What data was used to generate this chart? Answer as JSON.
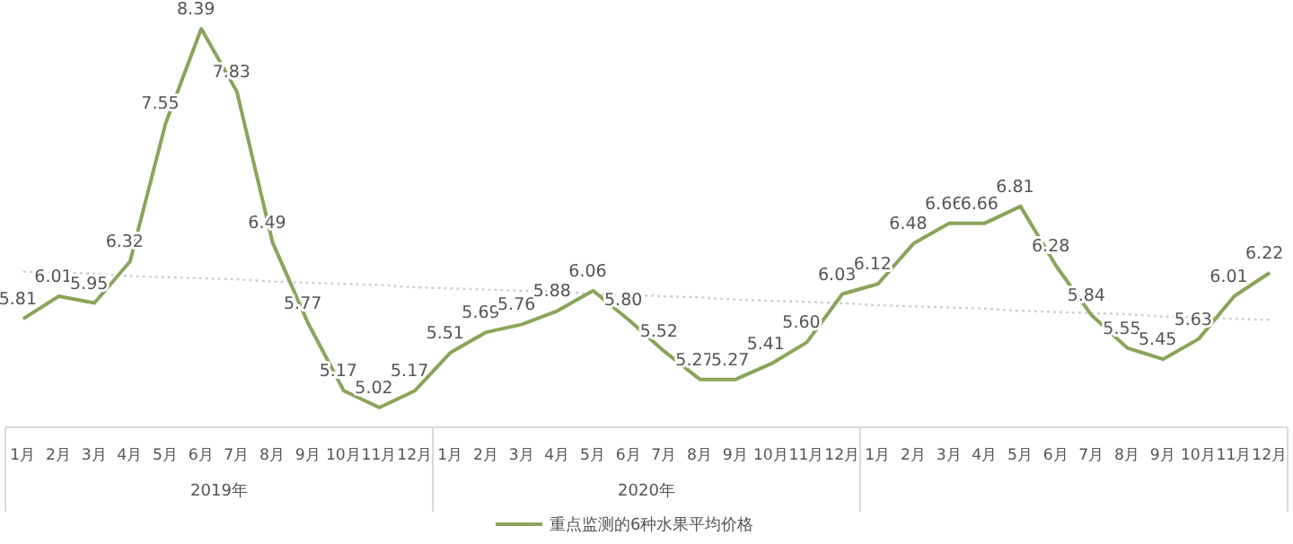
{
  "chart_data": {
    "type": "line",
    "categories": [
      "1月",
      "2月",
      "3月",
      "4月",
      "5月",
      "6月",
      "7月",
      "8月",
      "9月",
      "10月",
      "11月",
      "12月",
      "1月",
      "2月",
      "3月",
      "4月",
      "5月",
      "6月",
      "7月",
      "8月",
      "9月",
      "10月",
      "11月",
      "12月",
      "1月",
      "2月",
      "3月",
      "4月",
      "5月",
      "6月",
      "7月",
      "8月",
      "9月",
      "10月",
      "11月",
      "12月"
    ],
    "series": [
      {
        "name": "重点监测的6种水果平均价格",
        "color": "#8aa55a",
        "values": [
          5.81,
          6.01,
          5.95,
          6.32,
          7.55,
          8.39,
          7.83,
          6.49,
          5.77,
          5.17,
          5.02,
          5.17,
          5.51,
          5.69,
          5.76,
          5.88,
          6.06,
          5.8,
          5.52,
          5.27,
          5.27,
          5.41,
          5.6,
          6.03,
          6.12,
          6.48,
          6.66,
          6.66,
          6.81,
          6.28,
          5.84,
          5.55,
          5.45,
          5.63,
          6.01,
          6.22
        ],
        "value_labels": [
          "5.81",
          "6.01",
          "5.95",
          "6.32",
          "7.55",
          "8.39",
          "7.83",
          "6.49",
          "5.77",
          "5.17",
          "5.02",
          "5.17",
          "5.51",
          "5.69",
          "5.76",
          "5.88",
          "6.06",
          "5.80",
          "5.52",
          "5.27",
          "5.27",
          "5.41",
          "5.60",
          "6.03",
          "6.12",
          "6.48",
          "6.66",
          "6.66",
          "6.81",
          "6.28",
          "5.84",
          "5.55",
          "5.45",
          "5.63",
          "6.01",
          "6.22"
        ]
      },
      {
        "type": "line",
        "values": [
          6.23,
          6.22,
          6.21,
          6.19,
          6.18,
          6.17,
          6.16,
          6.14,
          6.13,
          6.12,
          6.11,
          6.09,
          6.08,
          6.07,
          6.06,
          6.05,
          6.03,
          6.02,
          6.01,
          6.0,
          5.98,
          5.97,
          5.96,
          5.95,
          5.93,
          5.92,
          5.91,
          5.9,
          5.88,
          5.87,
          5.86,
          5.85,
          5.83,
          5.82,
          5.81,
          5.8
        ],
        "color": "#cfcfcf",
        "line_style": "dotted"
      }
    ],
    "legend": "bottom",
    "marker": "none",
    "annotations": [
      "2019年",
      "2020年"
    ]
  }
}
